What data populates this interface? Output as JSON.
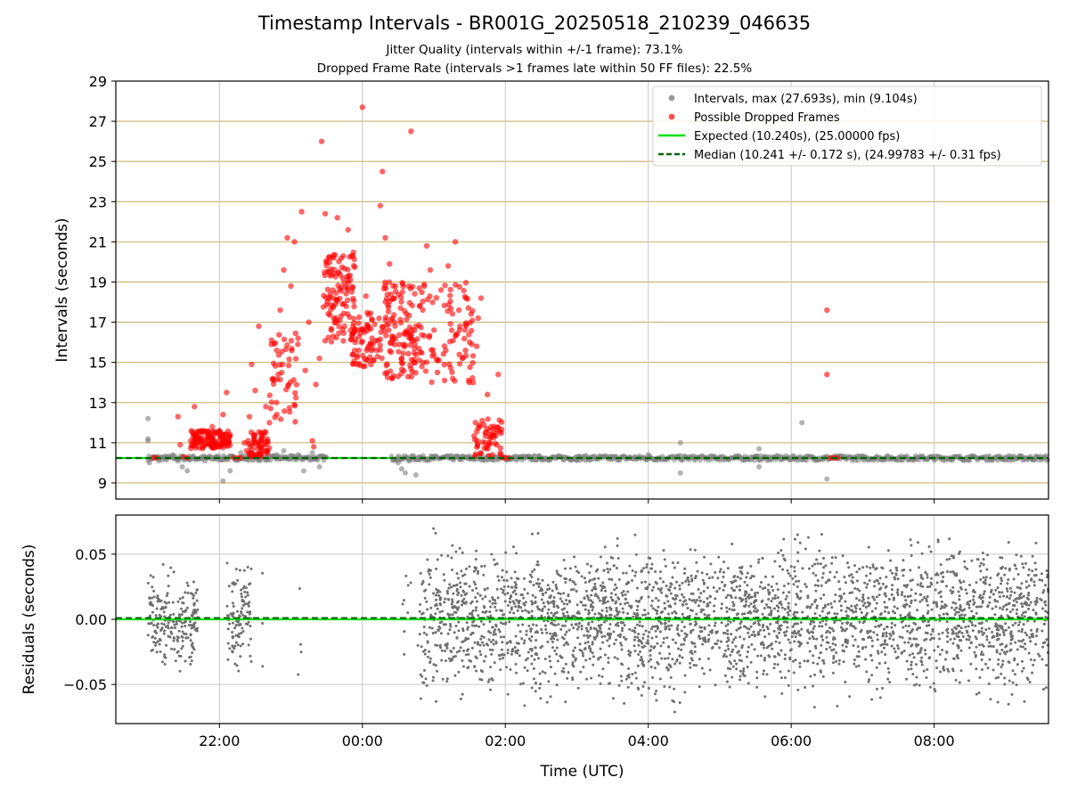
{
  "chart_data": [
    {
      "type": "scatter",
      "title": "Timestamp Intervals - BR001G_20250518_210239_046635",
      "subtitle_lines": [
        "Jitter Quality (intervals within +/-1 frame): 73.1%",
        "Dropped Frame Rate (intervals >1 frames late within 50 FF files): 22.5%"
      ],
      "xlabel": "",
      "ylabel": "Intervals (seconds)",
      "x_range_hours": [
        20.55,
        33.6
      ],
      "ylim": [
        8.2,
        29
      ],
      "yticks": [
        9,
        11,
        13,
        15,
        17,
        19,
        21,
        23,
        25,
        27,
        29
      ],
      "xticks_hours": [
        22,
        24,
        26,
        28,
        30,
        32
      ],
      "grid": "on",
      "legend_placement": "top-right",
      "expected_value": 10.24,
      "median_value": 10.241,
      "series": [
        {
          "name": "Intervals, max (27.693s), min (9.104s)",
          "kind": "scatter",
          "color": "#808080",
          "points": [
            [
              21.0,
              12.2
            ],
            [
              21.0,
              11.2
            ],
            [
              21.0,
              11.1
            ],
            [
              21.02,
              10.0
            ],
            [
              21.08,
              10.3
            ],
            [
              21.15,
              10.1
            ],
            [
              21.25,
              10.2
            ],
            [
              21.35,
              10.4
            ],
            [
              21.42,
              10.1
            ],
            [
              21.48,
              9.8
            ],
            [
              21.55,
              9.6
            ],
            [
              21.62,
              10.3
            ],
            [
              21.7,
              10.2
            ],
            [
              21.8,
              10.1
            ],
            [
              21.95,
              10.3
            ],
            [
              22.05,
              9.1
            ],
            [
              22.15,
              9.6
            ],
            [
              22.3,
              10.5
            ],
            [
              22.45,
              10.3
            ],
            [
              22.55,
              10.1
            ],
            [
              22.68,
              10.2
            ],
            [
              22.8,
              10.4
            ],
            [
              22.9,
              10.6
            ],
            [
              23.0,
              10.2
            ],
            [
              23.1,
              10.4
            ],
            [
              23.18,
              9.6
            ],
            [
              23.3,
              10.5
            ],
            [
              23.4,
              9.8
            ],
            [
              23.45,
              10.3
            ],
            [
              24.5,
              10.0
            ],
            [
              24.55,
              9.7
            ],
            [
              24.6,
              9.5
            ],
            [
              24.65,
              10.1
            ],
            [
              24.75,
              9.4
            ],
            [
              24.8,
              10.3
            ],
            [
              25.0,
              10.2
            ],
            [
              25.5,
              10.2
            ],
            [
              26.0,
              10.2
            ],
            [
              26.5,
              10.2
            ],
            [
              27.0,
              10.3
            ],
            [
              27.5,
              10.2
            ],
            [
              28.0,
              10.4
            ],
            [
              28.45,
              11.0
            ],
            [
              28.45,
              9.5
            ],
            [
              29.0,
              10.3
            ],
            [
              29.5,
              10.3
            ],
            [
              29.55,
              10.7
            ],
            [
              29.55,
              9.8
            ],
            [
              30.0,
              10.2
            ],
            [
              30.15,
              12.0
            ],
            [
              30.5,
              9.2
            ],
            [
              31.0,
              10.2
            ],
            [
              31.5,
              10.2
            ],
            [
              32.0,
              10.2
            ],
            [
              32.5,
              10.3
            ],
            [
              33.0,
              10.2
            ],
            [
              33.4,
              10.2
            ]
          ]
        },
        {
          "name": "Possible Dropped Frames",
          "kind": "scatter",
          "color": "#ff0000",
          "points": [
            [
              21.08,
              10.25
            ],
            [
              21.12,
              10.25
            ],
            [
              21.42,
              12.3
            ],
            [
              21.45,
              10.9
            ],
            [
              21.5,
              10.3
            ],
            [
              21.55,
              10.25
            ],
            [
              21.6,
              11.1
            ],
            [
              21.65,
              12.8
            ],
            [
              21.7,
              11.2
            ],
            [
              21.75,
              11.0
            ],
            [
              21.8,
              11.5
            ],
            [
              21.85,
              11.3
            ],
            [
              21.9,
              11.8
            ],
            [
              21.95,
              10.9
            ],
            [
              22.0,
              11.6
            ],
            [
              22.05,
              12.4
            ],
            [
              22.1,
              13.5
            ],
            [
              22.15,
              11.4
            ],
            [
              22.2,
              10.25
            ],
            [
              22.25,
              10.25
            ],
            [
              22.3,
              10.25
            ],
            [
              22.35,
              11.0
            ],
            [
              22.38,
              10.6
            ],
            [
              22.42,
              12.3
            ],
            [
              22.45,
              14.9
            ],
            [
              22.5,
              13.6
            ],
            [
              22.55,
              16.8
            ],
            [
              22.58,
              11.5
            ],
            [
              22.62,
              10.9
            ],
            [
              22.65,
              12.8
            ],
            [
              22.7,
              12.0
            ],
            [
              22.75,
              14.2
            ],
            [
              22.8,
              15.6
            ],
            [
              22.85,
              17.6
            ],
            [
              22.9,
              19.6
            ],
            [
              22.95,
              21.2
            ],
            [
              23.0,
              18.8
            ],
            [
              23.05,
              21.0
            ],
            [
              23.1,
              16.2
            ],
            [
              23.15,
              22.5
            ],
            [
              23.2,
              14.6
            ],
            [
              23.25,
              17.0
            ],
            [
              23.3,
              11.1
            ],
            [
              23.32,
              10.8
            ],
            [
              23.35,
              13.9
            ],
            [
              23.4,
              15.2
            ],
            [
              23.43,
              26.0
            ],
            [
              23.48,
              22.4
            ],
            [
              23.55,
              18.4
            ],
            [
              23.6,
              20.2
            ],
            [
              23.65,
              22.2
            ],
            [
              23.7,
              17.3
            ],
            [
              23.75,
              16.8
            ],
            [
              23.8,
              21.6
            ],
            [
              23.85,
              20.3
            ],
            [
              23.9,
              16.0
            ],
            [
              23.95,
              15.6
            ],
            [
              24.0,
              27.7
            ],
            [
              24.05,
              18.3
            ],
            [
              24.12,
              14.9
            ],
            [
              24.2,
              15.6
            ],
            [
              24.25,
              22.8
            ],
            [
              24.28,
              24.5
            ],
            [
              24.32,
              21.2
            ],
            [
              24.38,
              19.9
            ],
            [
              24.45,
              17.0
            ],
            [
              24.5,
              14.3
            ],
            [
              24.55,
              15.2
            ],
            [
              24.6,
              16.4
            ],
            [
              24.65,
              18.8
            ],
            [
              24.68,
              26.5
            ],
            [
              24.75,
              16.8
            ],
            [
              24.8,
              17.8
            ],
            [
              24.85,
              15.0
            ],
            [
              24.9,
              20.8
            ],
            [
              24.95,
              19.6
            ],
            [
              25.0,
              15.4
            ],
            [
              25.05,
              14.5
            ],
            [
              25.1,
              18.6
            ],
            [
              25.15,
              14.1
            ],
            [
              25.2,
              19.8
            ],
            [
              25.25,
              16.6
            ],
            [
              25.3,
              21.0
            ],
            [
              25.35,
              17.6
            ],
            [
              25.4,
              15.2
            ],
            [
              25.45,
              18.2
            ],
            [
              25.5,
              16.0
            ],
            [
              25.55,
              14.0
            ],
            [
              25.6,
              15.8
            ],
            [
              25.62,
              17.2
            ],
            [
              25.66,
              18.2
            ],
            [
              25.7,
              11.9
            ],
            [
              25.72,
              11.0
            ],
            [
              25.75,
              13.4
            ],
            [
              25.8,
              11.8
            ],
            [
              25.82,
              10.4
            ],
            [
              25.85,
              11.5
            ],
            [
              25.88,
              10.9
            ],
            [
              25.9,
              14.4
            ],
            [
              25.93,
              10.5
            ],
            [
              25.96,
              10.25
            ],
            [
              26.0,
              10.25
            ],
            [
              26.05,
              10.25
            ],
            [
              30.5,
              17.6
            ],
            [
              30.5,
              14.4
            ],
            [
              30.55,
              10.25
            ],
            [
              30.6,
              10.25
            ],
            [
              30.65,
              10.25
            ]
          ]
        },
        {
          "name": "Expected (10.240s), (25.00000 fps)",
          "kind": "line",
          "color": "#00e000",
          "style": "solid"
        },
        {
          "name": "Median (10.241 +/- 0.172 s), (24.99783 +/- 0.31 fps)",
          "kind": "line",
          "color": "#006400",
          "style": "dashed"
        }
      ]
    },
    {
      "type": "scatter",
      "xlabel": "Time (UTC)",
      "ylabel": "Residuals (seconds)",
      "x_range_hours": [
        20.55,
        33.6
      ],
      "ylim": [
        -0.08,
        0.08
      ],
      "yticks": [
        -0.05,
        0.0,
        0.05
      ],
      "ytick_labels": [
        "−0.05",
        "0.00",
        "0.05"
      ],
      "xticks_hours": [
        22,
        24,
        26,
        28,
        30,
        32
      ],
      "xtick_labels": [
        "22:00",
        "00:00",
        "02:00",
        "04:00",
        "06:00",
        "08:00"
      ],
      "grid": "on",
      "expected_residual": 0.0,
      "median_residual": 0.001,
      "colors": {
        "points": "#707070",
        "expected": "#00e000",
        "median": "#006400"
      },
      "residual_clusters": [
        {
          "x_start": 21.0,
          "x_end": 21.7,
          "count": 220,
          "spread": 0.05
        },
        {
          "x_start": 22.1,
          "x_end": 22.45,
          "count": 110,
          "spread": 0.05
        },
        {
          "x_start": 22.6,
          "x_end": 22.65,
          "count": 3,
          "spread": 0.07
        },
        {
          "x_start": 23.1,
          "x_end": 23.15,
          "count": 4,
          "spread": 0.07
        },
        {
          "x_start": 24.55,
          "x_end": 24.8,
          "count": 10,
          "spread": 0.075
        },
        {
          "x_start": 24.8,
          "x_end": 33.6,
          "count": 3000,
          "spread": 0.075
        }
      ]
    }
  ]
}
